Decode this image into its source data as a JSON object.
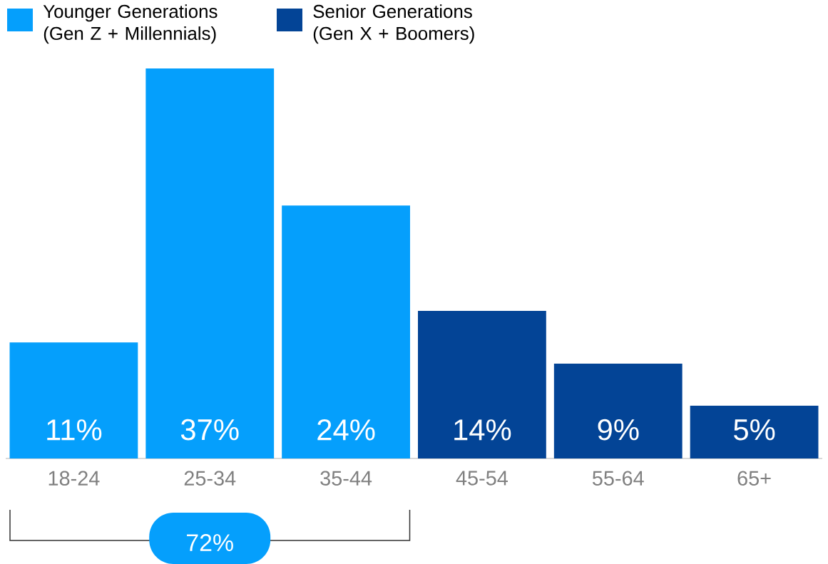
{
  "chart_data": {
    "type": "bar",
    "stacked": true,
    "categories": [
      "18-24",
      "25-34",
      "35-44",
      "45-54",
      "55-64",
      "65+"
    ],
    "series": [
      {
        "name": "Younger Generations (Gen Z + Millennials)",
        "color": "#059ffc",
        "values": [
          11,
          37,
          24,
          null,
          null,
          null
        ],
        "value_labels": [
          "11%",
          "37%",
          "24%",
          null,
          null,
          null
        ]
      },
      {
        "name": "Senior Generations (Gen X + Boomers)",
        "color": "#034496",
        "values": [
          null,
          null,
          null,
          14,
          9,
          5
        ],
        "value_labels": [
          null,
          null,
          null,
          "14%",
          "9%",
          "5%"
        ]
      }
    ],
    "legend": "top left",
    "annotations": [
      "72%"
    ]
  }
}
